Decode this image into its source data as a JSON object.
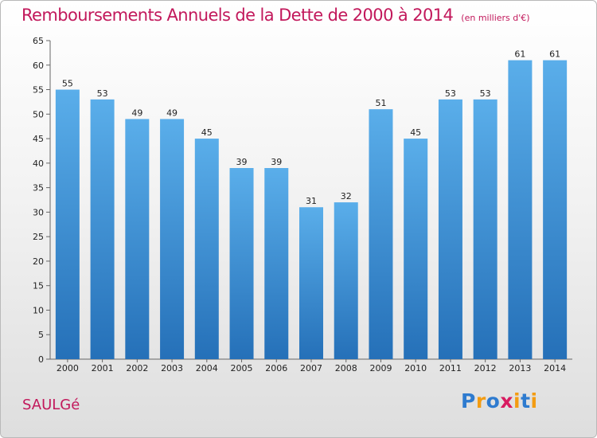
{
  "chart_data": {
    "type": "bar",
    "title": "Remboursements Annuels de la Dette de 2000 à 2014",
    "subtitle": "(en milliers d'€)",
    "categories": [
      "2000",
      "2001",
      "2002",
      "2003",
      "2004",
      "2005",
      "2006",
      "2007",
      "2008",
      "2009",
      "2010",
      "2011",
      "2012",
      "2013",
      "2014"
    ],
    "values": [
      55,
      53,
      49,
      49,
      45,
      39,
      39,
      31,
      32,
      51,
      45,
      53,
      53,
      61,
      61
    ],
    "ylim": [
      0,
      65
    ],
    "yticks": [
      0,
      5,
      10,
      15,
      20,
      25,
      30,
      35,
      40,
      45,
      50,
      55,
      60,
      65
    ],
    "xlabel": "",
    "ylabel": "",
    "grid": false,
    "bar_color": "#3a8fd8"
  },
  "footer": {
    "city": "SAULGé",
    "logo_letters": [
      "P",
      "r",
      "o",
      "x",
      "i",
      "t",
      "i"
    ],
    "logo_colors": [
      "#2e7bcf",
      "#f39c12",
      "#2e7bcf",
      "#d81b60",
      "#f39c12",
      "#2e7bcf",
      "#f39c12"
    ]
  }
}
